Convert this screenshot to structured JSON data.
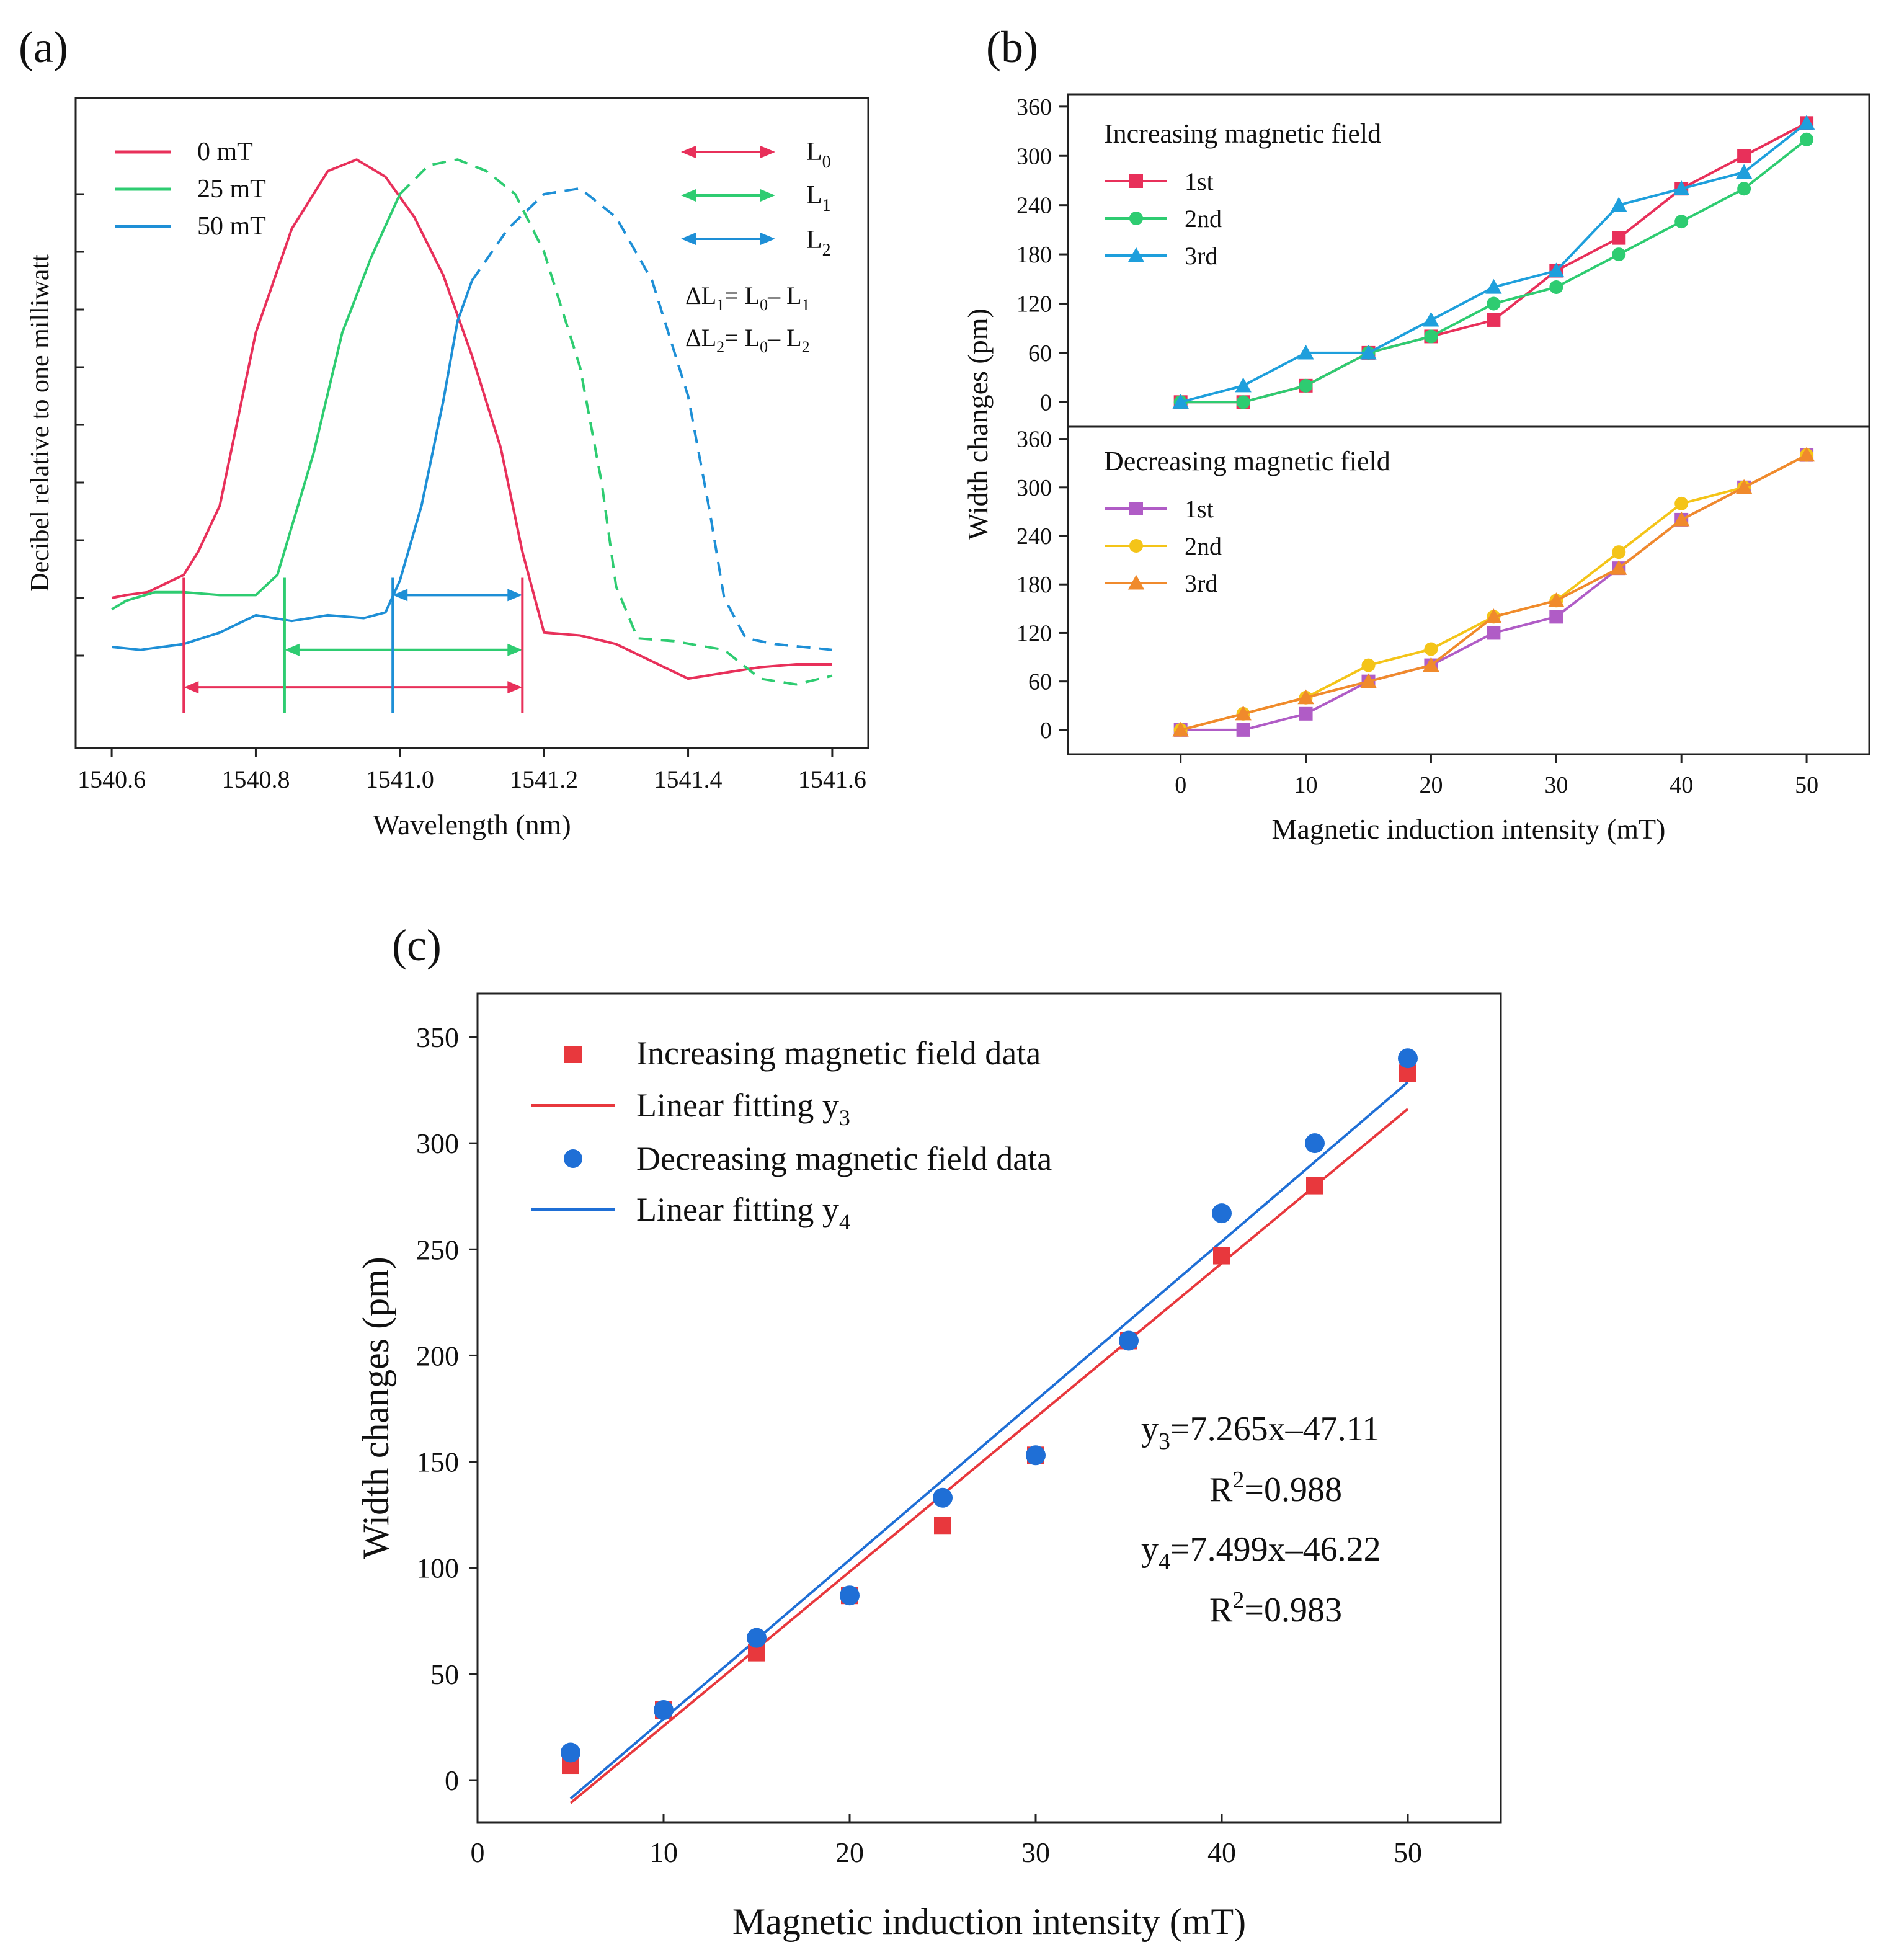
{
  "chart_data": [
    {
      "panel_label": "(a)",
      "type": "line",
      "xlabel": "Wavelength (nm)",
      "ylabel": "Decibel relative to one milliwatt",
      "xlim": [
        1540.55,
        1541.65
      ],
      "ylim": [
        0,
        10
      ],
      "xticks": [
        1540.6,
        1540.8,
        1541.0,
        1541.2,
        1541.4,
        1541.6
      ],
      "xtick_labels": [
        "1540.6",
        "1540.8",
        "1541.0",
        "1541.2",
        "1541.4",
        "1541.6"
      ],
      "yticks": [
        1,
        2,
        3,
        4,
        5,
        6,
        7,
        8,
        9
      ],
      "series": [
        {
          "name": "0 mT",
          "color": "#e8305a",
          "dashed_after": null,
          "x": [
            1540.6,
            1540.62,
            1540.65,
            1540.7,
            1540.72,
            1540.75,
            1540.8,
            1540.85,
            1540.9,
            1540.94,
            1540.98,
            1541.02,
            1541.06,
            1541.1,
            1541.14,
            1541.17,
            1541.2,
            1541.25,
            1541.3,
            1541.35,
            1541.4,
            1541.45,
            1541.5,
            1541.55,
            1541.6
          ],
          "y": [
            2.0,
            2.05,
            2.1,
            2.4,
            2.8,
            3.6,
            6.6,
            8.4,
            9.4,
            9.6,
            9.3,
            8.6,
            7.6,
            6.2,
            4.6,
            2.8,
            1.4,
            1.35,
            1.2,
            0.9,
            0.6,
            0.7,
            0.8,
            0.85,
            0.85
          ]
        },
        {
          "name": "25 mT",
          "color": "#2ecc71",
          "dashed_after": 1541.0,
          "x": [
            1540.6,
            1540.62,
            1540.66,
            1540.7,
            1540.75,
            1540.8,
            1540.83,
            1540.88,
            1540.92,
            1540.96,
            1541.0,
            1541.04,
            1541.08,
            1541.12,
            1541.16,
            1541.2,
            1541.25,
            1541.28,
            1541.3,
            1541.33,
            1541.38,
            1541.45,
            1541.5,
            1541.55,
            1541.6
          ],
          "y": [
            1.8,
            1.95,
            2.1,
            2.1,
            2.05,
            2.05,
            2.4,
            4.5,
            6.6,
            7.9,
            9.0,
            9.5,
            9.6,
            9.4,
            9.0,
            8.0,
            6.0,
            4.0,
            2.2,
            1.3,
            1.25,
            1.1,
            0.6,
            0.5,
            0.65
          ]
        },
        {
          "name": "50 mT",
          "color": "#1e8fd6",
          "dashed_after": 1541.1,
          "x": [
            1540.6,
            1540.64,
            1540.7,
            1540.75,
            1540.8,
            1540.85,
            1540.9,
            1540.95,
            1540.98,
            1541.0,
            1541.03,
            1541.06,
            1541.08,
            1541.1,
            1541.15,
            1541.2,
            1541.25,
            1541.3,
            1541.35,
            1541.4,
            1541.43,
            1541.45,
            1541.48,
            1541.52,
            1541.6
          ],
          "y": [
            1.15,
            1.1,
            1.2,
            1.4,
            1.7,
            1.6,
            1.7,
            1.65,
            1.75,
            2.3,
            3.6,
            5.4,
            6.8,
            7.5,
            8.4,
            9.0,
            9.1,
            8.6,
            7.5,
            5.5,
            3.5,
            2.0,
            1.3,
            1.2,
            1.1
          ]
        }
      ],
      "markers": [
        {
          "name": "L0",
          "x_start": 1540.7,
          "x_end": 1541.17,
          "y": 0.45,
          "color": "#e8305a"
        },
        {
          "name": "L1",
          "x_start": 1540.84,
          "x_end": 1541.17,
          "y": 1.1,
          "color": "#2ecc71"
        },
        {
          "name": "L2",
          "x_start": 1540.99,
          "x_end": 1541.17,
          "y": 2.05,
          "color": "#1e8fd6"
        }
      ],
      "legend_right": [
        {
          "base": "L",
          "sub": "0",
          "color": "#e8305a"
        },
        {
          "base": "L",
          "sub": "1",
          "color": "#2ecc71"
        },
        {
          "base": "L",
          "sub": "2",
          "color": "#1e8fd6"
        }
      ],
      "formulas": [
        {
          "t1": "ΔL",
          "s1": "1",
          "t2": "= L",
          "s2": "0",
          "t3": "– L",
          "s3": "1"
        },
        {
          "t1": "ΔL",
          "s1": "2",
          "t2": "= L",
          "s2": "0",
          "t3": "– L",
          "s3": "2"
        }
      ]
    },
    {
      "panel_label": "(b)",
      "type": "line",
      "xlabel": "Magnetic induction intensity (mT)",
      "ylabel": "Width changes (pm)",
      "x": [
        0,
        5,
        10,
        15,
        20,
        25,
        30,
        35,
        40,
        45,
        50
      ],
      "xlim": [
        -9,
        55
      ],
      "ylim": [
        -30,
        375
      ],
      "yticks": [
        0,
        60,
        120,
        180,
        240,
        300,
        360
      ],
      "subplots": [
        {
          "title": "Increasing magnetic field",
          "series": [
            {
              "name": "1st",
              "marker": "square",
              "color": "#e8305a",
              "values": [
                0,
                0,
                20,
                60,
                80,
                100,
                160,
                200,
                260,
                300,
                340
              ]
            },
            {
              "name": "2nd",
              "marker": "circle",
              "color": "#2ecc71",
              "values": [
                0,
                0,
                20,
                60,
                80,
                120,
                140,
                180,
                220,
                260,
                320
              ]
            },
            {
              "name": "3rd",
              "marker": "triangle",
              "color": "#1e9fdc",
              "values": [
                0,
                20,
                60,
                60,
                100,
                140,
                160,
                240,
                260,
                280,
                340
              ]
            }
          ]
        },
        {
          "title": "Decreasing magnetic field",
          "series": [
            {
              "name": "1st",
              "marker": "square",
              "color": "#b05cc6",
              "values": [
                0,
                0,
                20,
                60,
                80,
                120,
                140,
                200,
                260,
                300,
                340
              ]
            },
            {
              "name": "2nd",
              "marker": "circle",
              "color": "#f4c418",
              "values": [
                0,
                20,
                40,
                80,
                100,
                140,
                160,
                220,
                280,
                300,
                340
              ]
            },
            {
              "name": "3rd",
              "marker": "triangle",
              "color": "#f08a2c",
              "values": [
                0,
                20,
                40,
                60,
                80,
                140,
                160,
                200,
                260,
                300,
                340
              ]
            }
          ]
        }
      ]
    },
    {
      "panel_label": "(c)",
      "type": "scatter",
      "xlabel": "Magnetic induction intensity (mT)",
      "ylabel": "Width changes (pm)",
      "xlim": [
        0,
        55
      ],
      "ylim": [
        -20,
        370
      ],
      "xticks": [
        0,
        10,
        20,
        30,
        40,
        50
      ],
      "yticks": [
        0,
        50,
        100,
        150,
        200,
        250,
        300,
        350
      ],
      "series": [
        {
          "name": "Increasing magnetic field data",
          "marker": "square",
          "color": "#e8383d",
          "x": [
            5,
            10,
            15,
            20,
            25,
            30,
            35,
            40,
            45,
            50
          ],
          "y": [
            7,
            33,
            60,
            87,
            120,
            153,
            207,
            247,
            280,
            333
          ]
        },
        {
          "name": "Decreasing magnetic field data",
          "marker": "circle",
          "color": "#1f6fd6",
          "x": [
            5,
            10,
            15,
            20,
            25,
            30,
            35,
            40,
            45,
            50
          ],
          "y": [
            13,
            33,
            67,
            87,
            133,
            153,
            207,
            267,
            300,
            340
          ]
        }
      ],
      "fits": [
        {
          "name": "Linear fitting y",
          "sub": "3",
          "slope": 7.265,
          "intercept": -47.11,
          "color": "#e8383d",
          "x_range": [
            5,
            50
          ]
        },
        {
          "name": "Linear fitting y",
          "sub": "4",
          "slope": 7.499,
          "intercept": -46.22,
          "color": "#1f6fd6",
          "x_range": [
            5,
            50
          ]
        }
      ],
      "annotations": [
        {
          "y_var": "y",
          "y_sub": "3",
          "rest": "=7.265x–47.11"
        },
        {
          "r": "R",
          "sup": "2",
          "rest": "=0.988"
        },
        {
          "y_var": "y",
          "y_sub": "4",
          "rest": "=7.499x–46.22"
        },
        {
          "r": "R",
          "sup": "2",
          "rest": "=0.983"
        }
      ]
    }
  ]
}
